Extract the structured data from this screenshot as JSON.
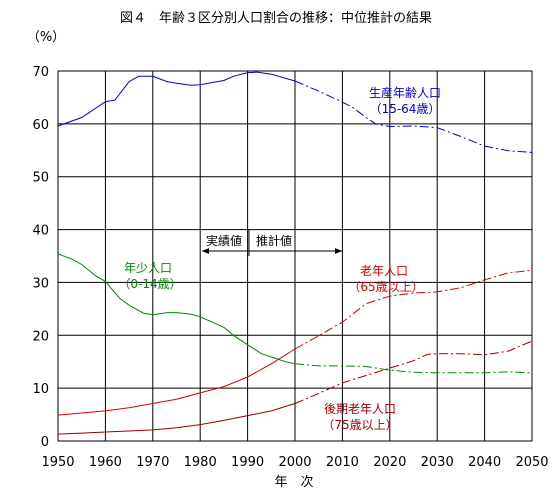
{
  "chart_data": {
    "type": "line",
    "title": "図４　年齢３区分別人口割合の推移：中位推計の結果",
    "ylabel": "（%）",
    "xlabel": "年　次",
    "xlim": [
      1950,
      2050
    ],
    "ylim": [
      0,
      70
    ],
    "x_ticks": [
      "1950",
      "1960",
      "1970",
      "1980",
      "1990",
      "2000",
      "2010",
      "2020",
      "2030",
      "2040",
      "2050"
    ],
    "y_ticks": [
      "0",
      "10",
      "20",
      "30",
      "40",
      "50",
      "60",
      "70"
    ],
    "grid": true,
    "actual_end_year": 2000,
    "annotation_actual": "実績値",
    "annotation_projection": "推計値",
    "series": [
      {
        "name": "生産年齢人口",
        "sublabel": "（15-64歳）",
        "color": "#0000cc",
        "actual": [
          [
            1950,
            59.6
          ],
          [
            1955,
            61.2
          ],
          [
            1960,
            64.2
          ],
          [
            1962,
            64.5
          ],
          [
            1965,
            68.0
          ],
          [
            1967,
            69.0
          ],
          [
            1970,
            69.0
          ],
          [
            1973,
            68.0
          ],
          [
            1975,
            67.7
          ],
          [
            1978,
            67.3
          ],
          [
            1980,
            67.4
          ],
          [
            1983,
            67.9
          ],
          [
            1985,
            68.2
          ],
          [
            1987,
            69.0
          ],
          [
            1990,
            69.7
          ],
          [
            1992,
            69.8
          ],
          [
            1995,
            69.4
          ],
          [
            2000,
            68.1
          ]
        ],
        "projection": [
          [
            2000,
            68.1
          ],
          [
            2005,
            66.2
          ],
          [
            2010,
            64.1
          ],
          [
            2012,
            63.2
          ],
          [
            2015,
            61.2
          ],
          [
            2017,
            60.0
          ],
          [
            2020,
            59.5
          ],
          [
            2025,
            59.6
          ],
          [
            2030,
            59.3
          ],
          [
            2035,
            57.6
          ],
          [
            2040,
            55.8
          ],
          [
            2045,
            54.9
          ],
          [
            2050,
            54.6
          ]
        ]
      },
      {
        "name": "年少人口",
        "sublabel": "（0-14歳）",
        "color": "#008800",
        "actual": [
          [
            1950,
            35.4
          ],
          [
            1953,
            34.4
          ],
          [
            1955,
            33.4
          ],
          [
            1958,
            31.2
          ],
          [
            1960,
            30.2
          ],
          [
            1963,
            27.0
          ],
          [
            1965,
            25.7
          ],
          [
            1968,
            24.2
          ],
          [
            1970,
            23.9
          ],
          [
            1973,
            24.3
          ],
          [
            1975,
            24.3
          ],
          [
            1978,
            24.0
          ],
          [
            1980,
            23.5
          ],
          [
            1983,
            22.3
          ],
          [
            1985,
            21.5
          ],
          [
            1987,
            20.0
          ],
          [
            1990,
            18.2
          ],
          [
            1993,
            16.5
          ],
          [
            1995,
            15.9
          ],
          [
            1998,
            15.0
          ],
          [
            2000,
            14.6
          ]
        ],
        "projection": [
          [
            2000,
            14.6
          ],
          [
            2005,
            14.2
          ],
          [
            2010,
            14.2
          ],
          [
            2015,
            14.1
          ],
          [
            2020,
            13.4
          ],
          [
            2025,
            13.0
          ],
          [
            2030,
            12.9
          ],
          [
            2035,
            12.9
          ],
          [
            2040,
            12.9
          ],
          [
            2045,
            13.1
          ],
          [
            2050,
            12.9
          ]
        ]
      },
      {
        "name": "老年人口",
        "sublabel": "（65歳以上）",
        "color": "#dd0000",
        "actual": [
          [
            1950,
            4.9
          ],
          [
            1955,
            5.3
          ],
          [
            1960,
            5.7
          ],
          [
            1965,
            6.3
          ],
          [
            1970,
            7.1
          ],
          [
            1975,
            7.9
          ],
          [
            1980,
            9.1
          ],
          [
            1985,
            10.3
          ],
          [
            1990,
            12.1
          ],
          [
            1995,
            14.6
          ],
          [
            2000,
            17.4
          ]
        ],
        "projection": [
          [
            2000,
            17.4
          ],
          [
            2005,
            19.9
          ],
          [
            2010,
            22.5
          ],
          [
            2015,
            26.0
          ],
          [
            2020,
            27.4
          ],
          [
            2025,
            28.0
          ],
          [
            2030,
            28.2
          ],
          [
            2035,
            29.0
          ],
          [
            2040,
            30.5
          ],
          [
            2045,
            31.8
          ],
          [
            2050,
            32.3
          ]
        ]
      },
      {
        "name": "後期老年人口",
        "sublabel": "（75歳以上）",
        "color": "#990000",
        "actual": [
          [
            1950,
            1.3
          ],
          [
            1955,
            1.5
          ],
          [
            1960,
            1.7
          ],
          [
            1965,
            1.9
          ],
          [
            1970,
            2.1
          ],
          [
            1975,
            2.5
          ],
          [
            1980,
            3.1
          ],
          [
            1985,
            3.9
          ],
          [
            1990,
            4.8
          ],
          [
            1995,
            5.7
          ],
          [
            2000,
            7.1
          ]
        ],
        "projection": [
          [
            2000,
            7.1
          ],
          [
            2005,
            9.0
          ],
          [
            2010,
            11.0
          ],
          [
            2015,
            12.4
          ],
          [
            2020,
            13.8
          ],
          [
            2025,
            15.2
          ],
          [
            2028,
            16.4
          ],
          [
            2030,
            16.5
          ],
          [
            2035,
            16.5
          ],
          [
            2040,
            16.3
          ],
          [
            2045,
            17.0
          ],
          [
            2050,
            18.9
          ]
        ]
      }
    ]
  }
}
